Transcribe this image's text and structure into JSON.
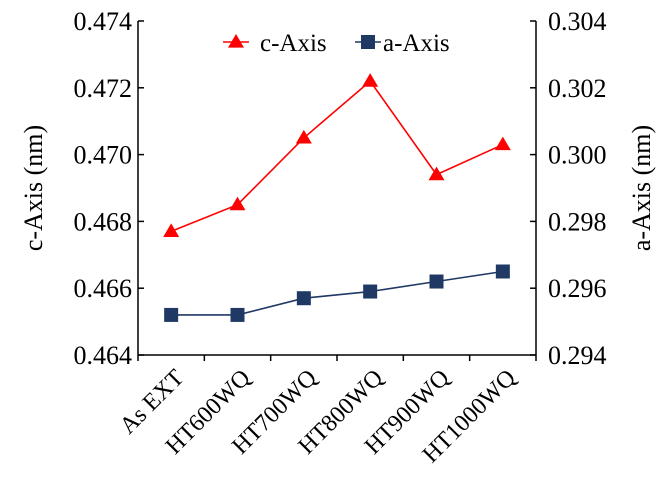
{
  "chart_data": {
    "type": "line",
    "categories": [
      "As EXT",
      "HT600WQ",
      "HT700WQ",
      "HT800WQ",
      "HT900WQ",
      "HT1000WQ"
    ],
    "series": [
      {
        "name": "c-Axis",
        "axis": "left",
        "color": "#ff0000",
        "marker": "triangle",
        "values": [
          0.4677,
          0.4685,
          0.4705,
          0.4722,
          0.4694,
          0.4703
        ]
      },
      {
        "name": "a-Axis",
        "axis": "right",
        "color": "#1f3864",
        "marker": "square",
        "values": [
          0.2952,
          0.2952,
          0.2957,
          0.2959,
          0.2962,
          0.2965
        ]
      }
    ],
    "ylabel_left": "c-Axis  (nm)",
    "ylabel_right": "a-Axis  (nm)",
    "ylim_left": [
      0.464,
      0.474
    ],
    "ylim_right": [
      0.294,
      0.304
    ],
    "yticks_left": [
      "0.464",
      "0.466",
      "0.468",
      "0.470",
      "0.472",
      "0.474"
    ],
    "yticks_right": [
      "0.294",
      "0.296",
      "0.298",
      "0.300",
      "0.302",
      "0.304"
    ],
    "legend_position": "top-center",
    "grid": false
  }
}
